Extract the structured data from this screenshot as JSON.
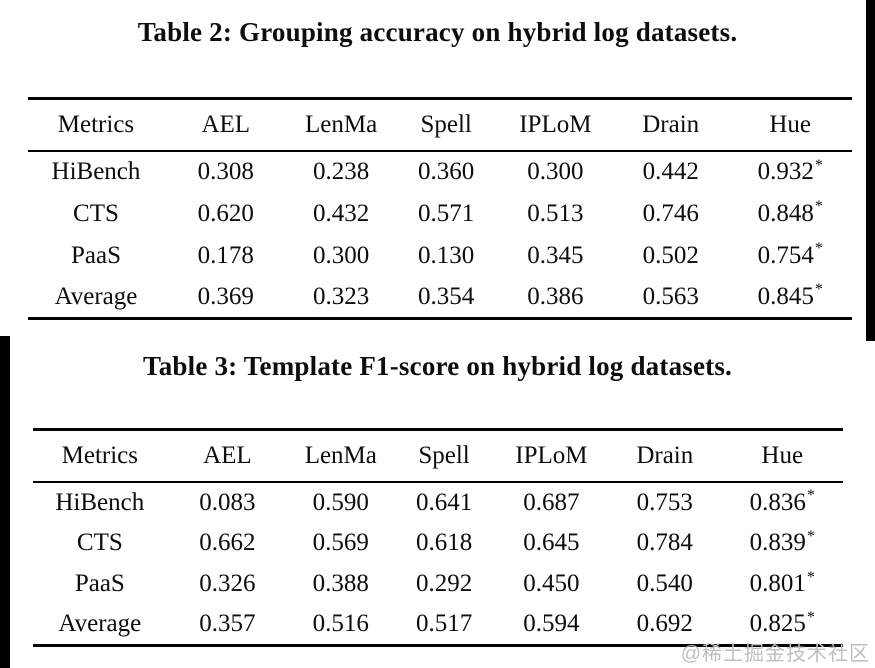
{
  "star_symbol": "*",
  "colors": {
    "rule": "#000000",
    "text": "#0d0d0d",
    "edge_bar": "#000000",
    "watermark": "#bfbfbf"
  },
  "watermark": {
    "text": "@稀土掘金技术社区"
  },
  "tables": [
    {
      "title": "Table 2: Grouping accuracy on hybrid log datasets.",
      "columns": [
        "Metrics",
        "AEL",
        "LenMa",
        "Spell",
        "IPLoM",
        "Drain",
        "Hue"
      ],
      "rows": [
        {
          "label": "HiBench",
          "cells": [
            {
              "v": "0.308",
              "bold": false,
              "star": false
            },
            {
              "v": "0.238",
              "bold": false,
              "star": false
            },
            {
              "v": "0.360",
              "bold": false,
              "star": false
            },
            {
              "v": "0.300",
              "bold": false,
              "star": false
            },
            {
              "v": "0.442",
              "bold": false,
              "star": false
            },
            {
              "v": "0.932",
              "bold": true,
              "star": true
            }
          ]
        },
        {
          "label": "CTS",
          "cells": [
            {
              "v": "0.620",
              "bold": false,
              "star": false
            },
            {
              "v": "0.432",
              "bold": false,
              "star": false
            },
            {
              "v": "0.571",
              "bold": false,
              "star": false
            },
            {
              "v": "0.513",
              "bold": false,
              "star": false
            },
            {
              "v": "0.746",
              "bold": false,
              "star": false
            },
            {
              "v": "0.848",
              "bold": false,
              "star": true
            }
          ]
        },
        {
          "label": "PaaS",
          "cells": [
            {
              "v": "0.178",
              "bold": false,
              "star": false
            },
            {
              "v": "0.300",
              "bold": false,
              "star": false
            },
            {
              "v": "0.130",
              "bold": false,
              "star": false
            },
            {
              "v": "0.345",
              "bold": false,
              "star": false
            },
            {
              "v": "0.502",
              "bold": false,
              "star": false
            },
            {
              "v": "0.754",
              "bold": false,
              "star": true
            }
          ]
        },
        {
          "label": "Average",
          "cells": [
            {
              "v": "0.369",
              "bold": false,
              "star": false
            },
            {
              "v": "0.323",
              "bold": false,
              "star": false
            },
            {
              "v": "0.354",
              "bold": false,
              "star": false
            },
            {
              "v": "0.386",
              "bold": false,
              "star": false
            },
            {
              "v": "0.563",
              "bold": false,
              "star": false
            },
            {
              "v": "0.845",
              "bold": false,
              "star": true
            }
          ]
        }
      ]
    },
    {
      "title": "Table 3: Template F1-score on hybrid log datasets.",
      "columns": [
        "Metrics",
        "AEL",
        "LenMa",
        "Spell",
        "IPLoM",
        "Drain",
        "Hue"
      ],
      "rows": [
        {
          "label": "HiBench",
          "cells": [
            {
              "v": "0.083",
              "bold": false,
              "star": false
            },
            {
              "v": "0.590",
              "bold": false,
              "star": false
            },
            {
              "v": "0.641",
              "bold": false,
              "star": false
            },
            {
              "v": "0.687",
              "bold": false,
              "star": false
            },
            {
              "v": "0.753",
              "bold": false,
              "star": false
            },
            {
              "v": "0.836",
              "bold": true,
              "star": true
            }
          ]
        },
        {
          "label": "CTS",
          "cells": [
            {
              "v": "0.662",
              "bold": false,
              "star": false
            },
            {
              "v": "0.569",
              "bold": false,
              "star": false
            },
            {
              "v": "0.618",
              "bold": false,
              "star": false
            },
            {
              "v": "0.645",
              "bold": false,
              "star": false
            },
            {
              "v": "0.784",
              "bold": false,
              "star": false
            },
            {
              "v": "0.839",
              "bold": true,
              "star": true
            }
          ]
        },
        {
          "label": "PaaS",
          "cells": [
            {
              "v": "0.326",
              "bold": false,
              "star": false
            },
            {
              "v": "0.388",
              "bold": false,
              "star": false
            },
            {
              "v": "0.292",
              "bold": false,
              "star": false
            },
            {
              "v": "0.450",
              "bold": false,
              "star": false
            },
            {
              "v": "0.540",
              "bold": false,
              "star": false
            },
            {
              "v": "0.801",
              "bold": true,
              "star": true
            }
          ]
        },
        {
          "label": "Average",
          "cells": [
            {
              "v": "0.357",
              "bold": false,
              "star": false
            },
            {
              "v": "0.516",
              "bold": false,
              "star": false
            },
            {
              "v": "0.517",
              "bold": false,
              "star": false
            },
            {
              "v": "0.594",
              "bold": false,
              "star": false
            },
            {
              "v": "0.692",
              "bold": false,
              "star": false
            },
            {
              "v": "0.825",
              "bold": true,
              "star": true
            }
          ]
        }
      ]
    }
  ]
}
